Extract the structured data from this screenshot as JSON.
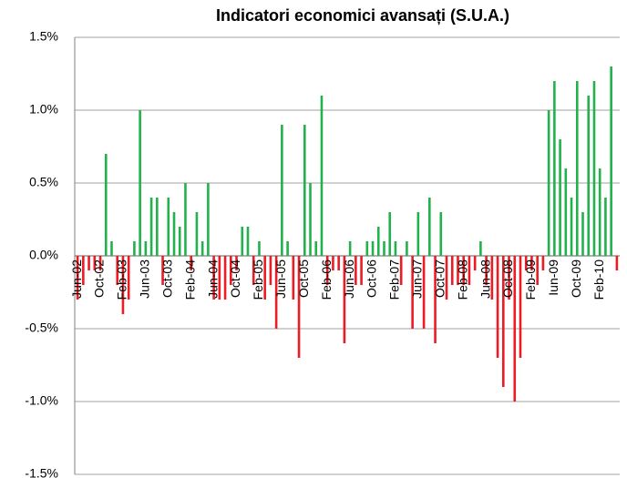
{
  "chart_data": {
    "type": "bar",
    "title": "Indicatori economici avansați (S.U.A.)",
    "categories": [
      "Jun-02",
      null,
      null,
      null,
      "Oct-02",
      null,
      null,
      null,
      "Feb-03",
      null,
      null,
      null,
      "Jun-03",
      null,
      null,
      null,
      "Oct-03",
      null,
      null,
      null,
      "Feb-04",
      null,
      null,
      null,
      "Jun-04",
      null,
      null,
      null,
      "Oct-04",
      null,
      null,
      null,
      "Feb-05",
      null,
      null,
      null,
      "Jun-05",
      null,
      null,
      null,
      "Oct-05",
      null,
      null,
      null,
      "Feb-06",
      null,
      null,
      null,
      "Jun-06",
      null,
      null,
      null,
      "Oct-06",
      null,
      null,
      null,
      "Feb-07",
      null,
      null,
      null,
      "Jun-07",
      null,
      null,
      null,
      "Oct-07",
      null,
      null,
      null,
      "Feb-08",
      null,
      null,
      null,
      "Jun-08",
      null,
      null,
      null,
      "Oct-08",
      null,
      null,
      null,
      "Feb-09",
      null,
      null,
      null,
      "Iun-09",
      null,
      null,
      null,
      "Oct-09",
      null,
      null,
      null,
      "Feb-10",
      null,
      null,
      null
    ],
    "values": [
      -0.3,
      -0.2,
      -0.1,
      -0.1,
      -0.1,
      0.7,
      0.1,
      -0.2,
      -0.4,
      -0.3,
      0.1,
      1.0,
      0.1,
      0.4,
      0.4,
      -0.2,
      0.4,
      0.3,
      0.2,
      0.5,
      -0.1,
      0.3,
      0.1,
      0.5,
      -0.3,
      -0.3,
      -0.3,
      -0.2,
      -0.1,
      0.2,
      0.2,
      -0.2,
      0.1,
      -0.3,
      -0.2,
      -0.5,
      0.9,
      0.1,
      -0.3,
      -0.7,
      0.9,
      0.5,
      0.1,
      1.1,
      -0.2,
      -0.1,
      -0.1,
      -0.6,
      0.1,
      -0.2,
      -0.2,
      0.1,
      0.1,
      0.2,
      0.1,
      0.3,
      0.1,
      -0.2,
      0.1,
      -0.5,
      0.3,
      -0.5,
      0.4,
      -0.6,
      0.3,
      -0.3,
      -0.2,
      -0.2,
      -0.2,
      -0.2,
      -0.1,
      0.1,
      -0.2,
      -0.3,
      -0.7,
      -0.9,
      -0.3,
      -1.0,
      -0.7,
      -0.1,
      -0.1,
      -0.2,
      -0.1,
      1.0,
      1.2,
      0.8,
      0.6,
      0.4,
      1.2,
      0.3,
      1.1,
      1.2,
      0.6,
      0.4,
      1.3,
      -0.1
    ],
    "positive_color": "#22b14c",
    "negative_color": "#ed1c24",
    "ylim": [
      -1.5,
      1.5
    ],
    "yticks": [
      {
        "value": -1.5,
        "label": "-1.5%"
      },
      {
        "value": -1.0,
        "label": "-1.0%"
      },
      {
        "value": -0.5,
        "label": "-0.5%"
      },
      {
        "value": 0.0,
        "label": "0.0%"
      },
      {
        "value": 0.5,
        "label": "0.5%"
      },
      {
        "value": 1.0,
        "label": "1.0%"
      },
      {
        "value": 1.5,
        "label": "1.5%"
      }
    ],
    "grid": true
  }
}
